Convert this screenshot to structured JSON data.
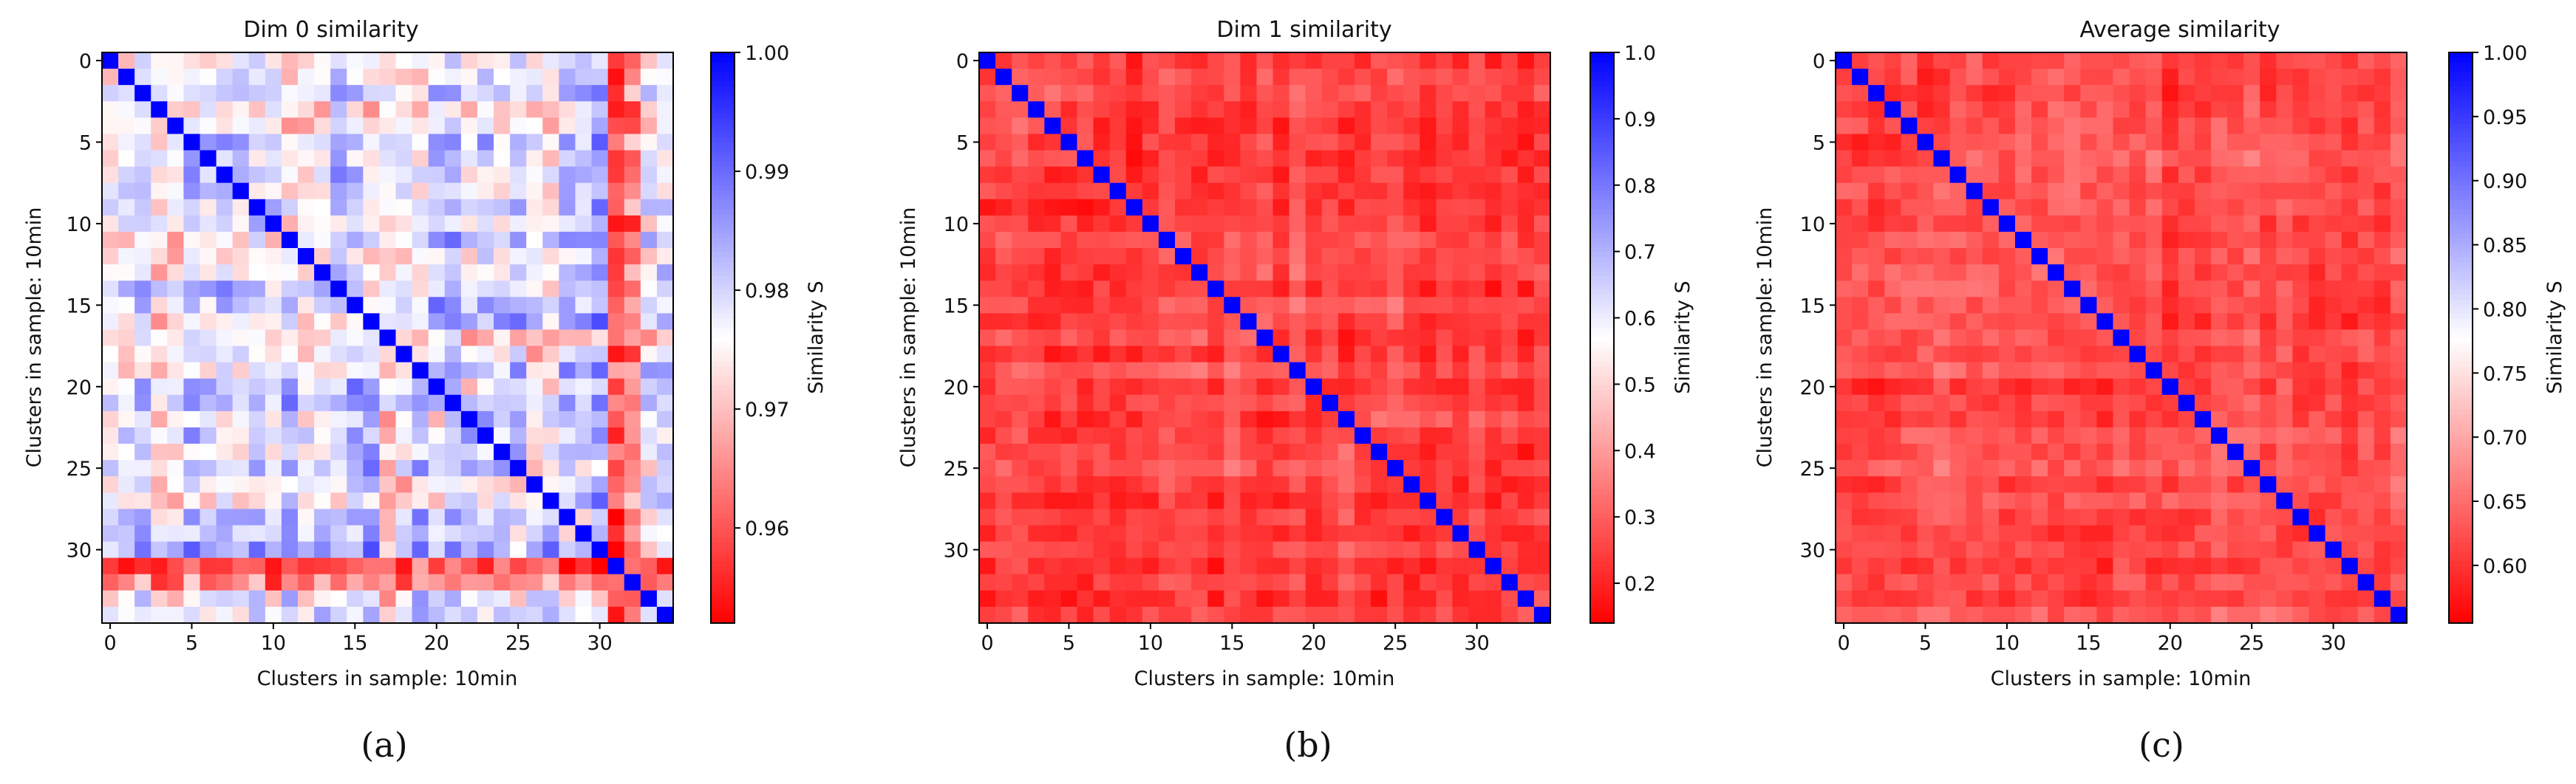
{
  "figure": {
    "charts": [
      {
        "type": "heatmap",
        "title": "Dim 0 similarity",
        "caption": "(a)",
        "xlabel": "Clusters in sample: 10min",
        "ylabel": "Clusters in sample: 10min",
        "n": 35,
        "x_ticks": [
          "0",
          "5",
          "10",
          "15",
          "20",
          "25",
          "30"
        ],
        "y_ticks": [
          "0",
          "5",
          "10",
          "15",
          "20",
          "25",
          "30"
        ],
        "colorbar_label": "Similarity S",
        "colorbar_ticks": [
          "1.00",
          "0.99",
          "0.98",
          "0.97",
          "0.96"
        ],
        "colorbar_tick_values": [
          1.0,
          0.99,
          0.98,
          0.97,
          0.96
        ],
        "vmin": 0.952,
        "vmax": 1.0,
        "center": 0.976,
        "seed": 11,
        "noise": 0.008,
        "hot_cols": [
          {
            "index": 31,
            "mean": 0.962
          },
          {
            "index": 32,
            "mean": 0.964
          }
        ],
        "hot_rows": [
          {
            "index": 31,
            "mean": 0.963
          },
          {
            "index": 32,
            "mean": 0.966
          },
          {
            "index": 17,
            "mean": 0.972
          }
        ],
        "offdiag_mean": 0.979,
        "diagonal": 1.0
      },
      {
        "type": "heatmap",
        "title": "Dim 1 similarity",
        "caption": "(b)",
        "xlabel": "Clusters in sample: 10min",
        "ylabel": "Clusters in sample: 10min",
        "n": 35,
        "x_ticks": [
          "0",
          "5",
          "10",
          "15",
          "20",
          "25",
          "30"
        ],
        "y_ticks": [
          "0",
          "5",
          "10",
          "15",
          "20",
          "25",
          "30"
        ],
        "colorbar_label": "Similarity S",
        "colorbar_ticks": [
          "1.0",
          "0.9",
          "0.8",
          "0.7",
          "0.6",
          "0.5",
          "0.4",
          "0.3",
          "0.2"
        ],
        "colorbar_tick_values": [
          1.0,
          0.9,
          0.8,
          0.7,
          0.6,
          0.5,
          0.4,
          0.3,
          0.2
        ],
        "vmin": 0.14,
        "vmax": 1.0,
        "center": 0.57,
        "seed": 23,
        "noise": 0.06,
        "hot_cols": [],
        "hot_rows": [],
        "offdiag_mean": 0.26,
        "diagonal": 1.0
      },
      {
        "type": "heatmap",
        "title": "Average similarity",
        "caption": "(c)",
        "xlabel": "Clusters in sample: 10min",
        "ylabel": "Clusters in sample: 10min",
        "n": 35,
        "x_ticks": [
          "0",
          "5",
          "10",
          "15",
          "20",
          "25",
          "30"
        ],
        "y_ticks": [
          "0",
          "5",
          "10",
          "15",
          "20",
          "25",
          "30"
        ],
        "colorbar_label": "Similarity S",
        "colorbar_ticks": [
          "1.00",
          "0.95",
          "0.90",
          "0.85",
          "0.80",
          "0.75",
          "0.70",
          "0.65",
          "0.60"
        ],
        "colorbar_tick_values": [
          1.0,
          0.95,
          0.9,
          0.85,
          0.8,
          0.75,
          0.7,
          0.65,
          0.6
        ],
        "vmin": 0.555,
        "vmax": 1.0,
        "center": 0.777,
        "seed": 37,
        "noise": 0.03,
        "hot_cols": [],
        "hot_rows": [],
        "offdiag_mean": 0.625,
        "diagonal": 1.0
      }
    ]
  }
}
